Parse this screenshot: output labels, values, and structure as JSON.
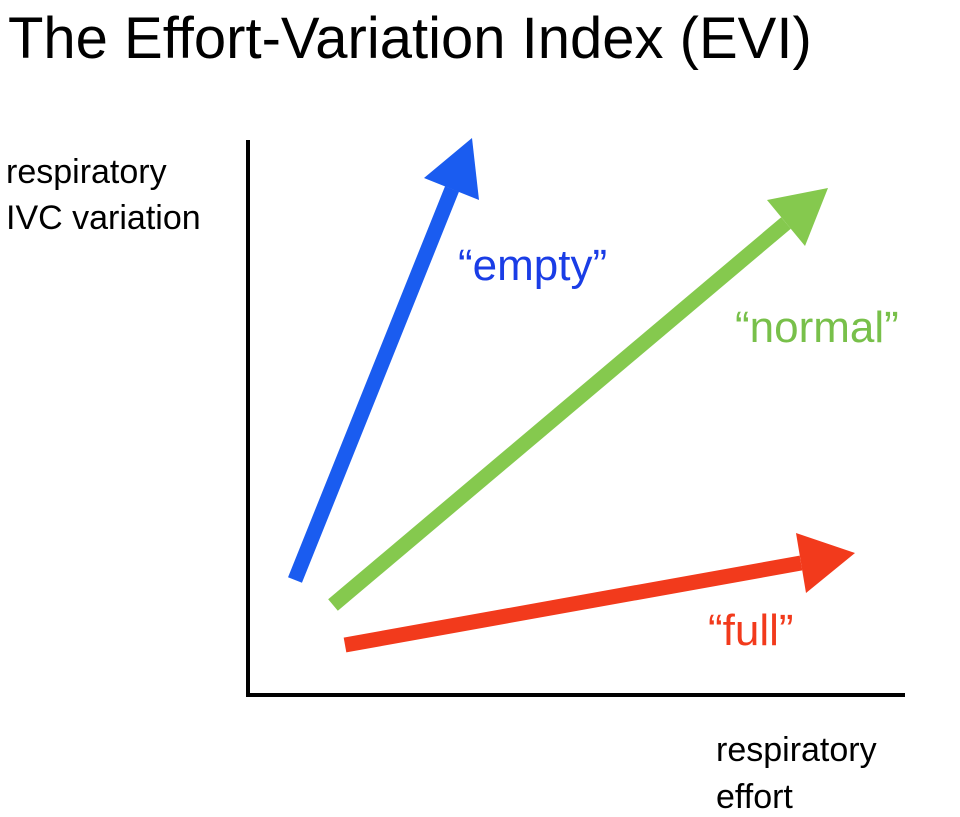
{
  "header": {
    "title": "The Effort-Variation Index (EVI)"
  },
  "y_axis": {
    "label_lines": [
      "respiratory",
      "IVC variation"
    ]
  },
  "x_axis": {
    "label_lines": [
      "respiratory",
      "effort"
    ]
  },
  "arrows": [
    {
      "label": "“empty”"
    },
    {
      "label": "“normal”"
    },
    {
      "label": "“full”"
    }
  ]
}
